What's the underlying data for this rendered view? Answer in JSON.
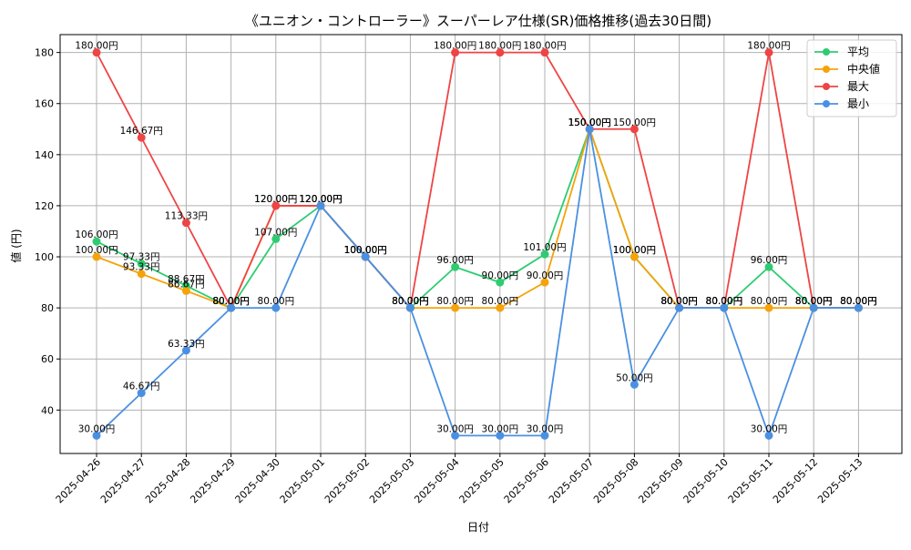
{
  "chart_data": {
    "type": "line",
    "title": "《ユニオン・コントローラー》スーパーレア仕様(SR)価格推移(過去30日間)",
    "xlabel": "日付",
    "ylabel": "値 (円)",
    "categories": [
      "2025-04-26",
      "2025-04-27",
      "2025-04-28",
      "2025-04-29",
      "2025-04-30",
      "2025-05-01",
      "2025-05-02",
      "2025-05-03",
      "2025-05-04",
      "2025-05-05",
      "2025-05-06",
      "2025-05-07",
      "2025-05-08",
      "2025-05-09",
      "2025-05-10",
      "2025-05-11",
      "2025-05-12",
      "2025-05-13"
    ],
    "ylim": [
      23,
      187
    ],
    "yticks": [
      40,
      60,
      80,
      100,
      120,
      140,
      160,
      180
    ],
    "grid": true,
    "legend_position": "top-right",
    "label_suffix": "円",
    "series": [
      {
        "name": "平均",
        "color": "#2ecc71",
        "values": [
          106.0,
          97.33,
          88.67,
          80.0,
          107.0,
          120.0,
          100.0,
          80.0,
          96.0,
          90.0,
          101.0,
          150.0,
          100.0,
          80.0,
          80.0,
          96.0,
          80.0,
          80.0
        ]
      },
      {
        "name": "中央値",
        "color": "#f5a30a",
        "values": [
          100.0,
          93.33,
          86.67,
          80.0,
          120.0,
          120.0,
          100.0,
          80.0,
          80.0,
          80.0,
          90.0,
          150.0,
          100.0,
          80.0,
          80.0,
          80.0,
          80.0,
          80.0
        ]
      },
      {
        "name": "最大",
        "color": "#ef4444",
        "values": [
          180.0,
          146.67,
          113.33,
          80.0,
          120.0,
          120.0,
          100.0,
          80.0,
          180.0,
          180.0,
          180.0,
          150.0,
          150.0,
          80.0,
          80.0,
          180.0,
          80.0,
          80.0
        ]
      },
      {
        "name": "最小",
        "color": "#4a90e2",
        "values": [
          30.0,
          46.67,
          63.33,
          80.0,
          80.0,
          120.0,
          100.0,
          80.0,
          30.0,
          30.0,
          30.0,
          150.0,
          50.0,
          80.0,
          80.0,
          30.0,
          80.0,
          80.0
        ]
      }
    ]
  }
}
